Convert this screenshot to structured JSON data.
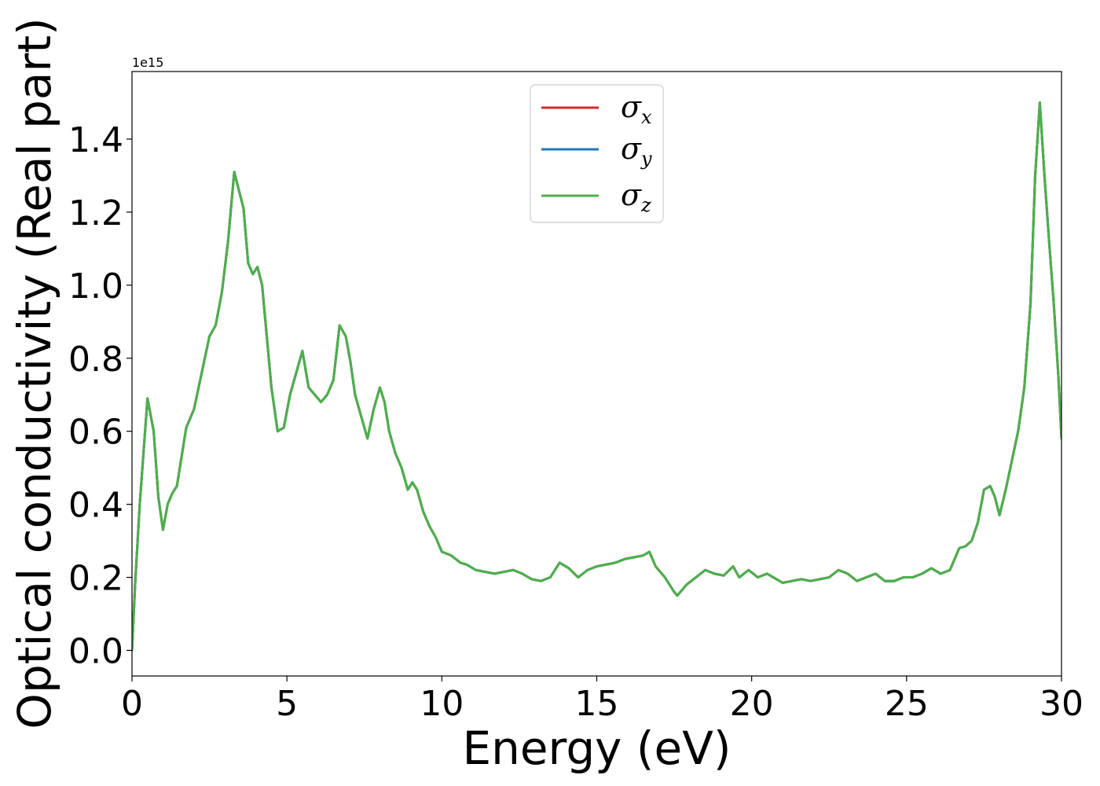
{
  "chart_data": {
    "type": "line",
    "xlabel": "Energy (eV)",
    "ylabel": "Optical conductivity (Real part)",
    "y_offset_label": "1e15",
    "xlim": [
      0,
      30
    ],
    "ylim": [
      -0.07,
      1.585
    ],
    "y_scale_factor": 1000000000000000.0,
    "xticks": [
      0,
      5,
      10,
      15,
      20,
      25,
      30
    ],
    "xtick_labels": [
      "0",
      "5",
      "10",
      "15",
      "20",
      "25",
      "30"
    ],
    "yticks": [
      0.0,
      0.2,
      0.4,
      0.6,
      0.8,
      1.0,
      1.2,
      1.4
    ],
    "ytick_labels": [
      "0.0",
      "0.2",
      "0.4",
      "0.6",
      "0.8",
      "1.0",
      "1.2",
      "1.4"
    ],
    "grid": false,
    "legend_position": "top-center",
    "x": [
      0,
      0.1,
      0.25,
      0.5,
      0.7,
      0.85,
      1.0,
      1.15,
      1.3,
      1.45,
      1.6,
      1.75,
      2.0,
      2.25,
      2.5,
      2.7,
      2.9,
      3.1,
      3.3,
      3.45,
      3.6,
      3.75,
      3.9,
      4.05,
      4.2,
      4.35,
      4.5,
      4.7,
      4.9,
      5.1,
      5.3,
      5.5,
      5.7,
      5.9,
      6.1,
      6.3,
      6.5,
      6.7,
      6.9,
      7.05,
      7.2,
      7.4,
      7.6,
      7.8,
      8.0,
      8.15,
      8.3,
      8.5,
      8.7,
      8.9,
      9.05,
      9.2,
      9.4,
      9.6,
      9.8,
      10.0,
      10.3,
      10.6,
      10.8,
      11.1,
      11.4,
      11.7,
      12.0,
      12.3,
      12.6,
      12.9,
      13.2,
      13.5,
      13.8,
      14.1,
      14.4,
      14.7,
      15.0,
      15.3,
      15.6,
      15.9,
      16.2,
      16.5,
      16.7,
      16.9,
      17.2,
      17.5,
      17.6,
      17.9,
      18.2,
      18.5,
      18.8,
      19.1,
      19.4,
      19.6,
      19.9,
      20.2,
      20.5,
      20.7,
      21.0,
      21.3,
      21.6,
      21.9,
      22.2,
      22.5,
      22.8,
      23.1,
      23.4,
      23.7,
      24.0,
      24.3,
      24.6,
      24.9,
      25.2,
      25.5,
      25.8,
      26.1,
      26.4,
      26.7,
      26.9,
      27.1,
      27.3,
      27.5,
      27.7,
      27.85,
      28.0,
      28.2,
      28.4,
      28.6,
      28.8,
      29.0,
      29.15,
      29.3,
      29.45,
      29.6,
      29.75,
      29.9,
      30.0
    ],
    "series": [
      {
        "name": "σx",
        "color": "#d62728",
        "values": [
          0.0,
          0.18,
          0.4,
          0.69,
          0.6,
          0.42,
          0.33,
          0.4,
          0.43,
          0.45,
          0.53,
          0.61,
          0.66,
          0.76,
          0.86,
          0.89,
          0.98,
          1.12,
          1.31,
          1.26,
          1.21,
          1.06,
          1.03,
          1.05,
          1.0,
          0.86,
          0.72,
          0.6,
          0.61,
          0.7,
          0.76,
          0.82,
          0.72,
          0.7,
          0.68,
          0.7,
          0.74,
          0.89,
          0.86,
          0.79,
          0.7,
          0.64,
          0.58,
          0.66,
          0.72,
          0.68,
          0.6,
          0.54,
          0.5,
          0.44,
          0.46,
          0.44,
          0.38,
          0.34,
          0.31,
          0.27,
          0.26,
          0.24,
          0.235,
          0.22,
          0.215,
          0.21,
          0.215,
          0.22,
          0.21,
          0.195,
          0.19,
          0.2,
          0.24,
          0.225,
          0.2,
          0.22,
          0.23,
          0.235,
          0.24,
          0.25,
          0.255,
          0.26,
          0.27,
          0.23,
          0.2,
          0.16,
          0.15,
          0.18,
          0.2,
          0.22,
          0.21,
          0.205,
          0.23,
          0.2,
          0.22,
          0.2,
          0.21,
          0.2,
          0.185,
          0.19,
          0.195,
          0.19,
          0.195,
          0.2,
          0.22,
          0.21,
          0.19,
          0.2,
          0.21,
          0.19,
          0.19,
          0.2,
          0.2,
          0.21,
          0.225,
          0.21,
          0.22,
          0.28,
          0.285,
          0.3,
          0.35,
          0.44,
          0.45,
          0.42,
          0.37,
          0.44,
          0.52,
          0.6,
          0.72,
          0.95,
          1.3,
          1.5,
          1.3,
          1.12,
          0.95,
          0.75,
          0.58
        ]
      },
      {
        "name": "σy",
        "color": "#1f77b4",
        "values": [
          0.0,
          0.18,
          0.4,
          0.69,
          0.6,
          0.42,
          0.33,
          0.4,
          0.43,
          0.45,
          0.53,
          0.61,
          0.66,
          0.76,
          0.86,
          0.89,
          0.98,
          1.12,
          1.31,
          1.26,
          1.21,
          1.06,
          1.03,
          1.05,
          1.0,
          0.86,
          0.72,
          0.6,
          0.61,
          0.7,
          0.76,
          0.82,
          0.72,
          0.7,
          0.68,
          0.7,
          0.74,
          0.89,
          0.86,
          0.79,
          0.7,
          0.64,
          0.58,
          0.66,
          0.72,
          0.68,
          0.6,
          0.54,
          0.5,
          0.44,
          0.46,
          0.44,
          0.38,
          0.34,
          0.31,
          0.27,
          0.26,
          0.24,
          0.235,
          0.22,
          0.215,
          0.21,
          0.215,
          0.22,
          0.21,
          0.195,
          0.19,
          0.2,
          0.24,
          0.225,
          0.2,
          0.22,
          0.23,
          0.235,
          0.24,
          0.25,
          0.255,
          0.26,
          0.27,
          0.23,
          0.2,
          0.16,
          0.15,
          0.18,
          0.2,
          0.22,
          0.21,
          0.205,
          0.23,
          0.2,
          0.22,
          0.2,
          0.21,
          0.2,
          0.185,
          0.19,
          0.195,
          0.19,
          0.195,
          0.2,
          0.22,
          0.21,
          0.19,
          0.2,
          0.21,
          0.19,
          0.19,
          0.2,
          0.2,
          0.21,
          0.225,
          0.21,
          0.22,
          0.28,
          0.285,
          0.3,
          0.35,
          0.44,
          0.45,
          0.42,
          0.37,
          0.44,
          0.52,
          0.6,
          0.72,
          0.95,
          1.3,
          1.5,
          1.3,
          1.12,
          0.95,
          0.75,
          0.58
        ]
      },
      {
        "name": "σz",
        "color": "#4daf4a",
        "values": [
          0.0,
          0.18,
          0.4,
          0.69,
          0.6,
          0.42,
          0.33,
          0.4,
          0.43,
          0.45,
          0.53,
          0.61,
          0.66,
          0.76,
          0.86,
          0.89,
          0.98,
          1.12,
          1.31,
          1.26,
          1.21,
          1.06,
          1.03,
          1.05,
          1.0,
          0.86,
          0.72,
          0.6,
          0.61,
          0.7,
          0.76,
          0.82,
          0.72,
          0.7,
          0.68,
          0.7,
          0.74,
          0.89,
          0.86,
          0.79,
          0.7,
          0.64,
          0.58,
          0.66,
          0.72,
          0.68,
          0.6,
          0.54,
          0.5,
          0.44,
          0.46,
          0.44,
          0.38,
          0.34,
          0.31,
          0.27,
          0.26,
          0.24,
          0.235,
          0.22,
          0.215,
          0.21,
          0.215,
          0.22,
          0.21,
          0.195,
          0.19,
          0.2,
          0.24,
          0.225,
          0.2,
          0.22,
          0.23,
          0.235,
          0.24,
          0.25,
          0.255,
          0.26,
          0.27,
          0.23,
          0.2,
          0.16,
          0.15,
          0.18,
          0.2,
          0.22,
          0.21,
          0.205,
          0.23,
          0.2,
          0.22,
          0.2,
          0.21,
          0.2,
          0.185,
          0.19,
          0.195,
          0.19,
          0.195,
          0.2,
          0.22,
          0.21,
          0.19,
          0.2,
          0.21,
          0.19,
          0.19,
          0.2,
          0.2,
          0.21,
          0.225,
          0.21,
          0.22,
          0.28,
          0.285,
          0.3,
          0.35,
          0.44,
          0.45,
          0.42,
          0.37,
          0.44,
          0.52,
          0.6,
          0.72,
          0.95,
          1.3,
          1.5,
          1.3,
          1.12,
          0.95,
          0.75,
          0.58
        ]
      }
    ],
    "legend": [
      {
        "symbol": "σ",
        "subscript": "x",
        "color": "#d62728"
      },
      {
        "symbol": "σ",
        "subscript": "y",
        "color": "#1f77b4"
      },
      {
        "symbol": "σ",
        "subscript": "z",
        "color": "#4daf4a"
      }
    ]
  }
}
